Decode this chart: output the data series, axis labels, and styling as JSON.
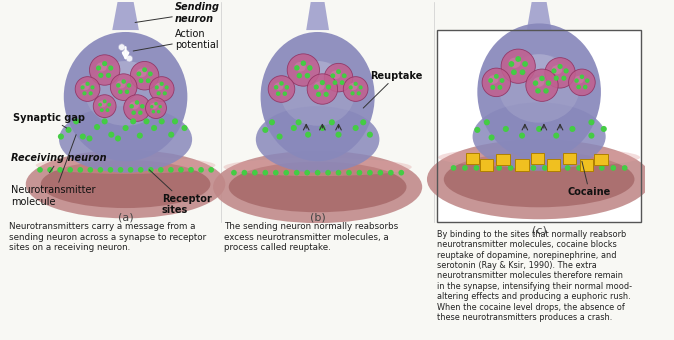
{
  "background_color": "#f8f8f4",
  "panels": [
    "(a)",
    "(b)",
    "(c)"
  ],
  "panel_a": {
    "labels": {
      "sending_neuron": "Sending\nneuron",
      "action_potential": "Action\npotential",
      "synaptic_gap": "Synaptic gap",
      "receiving_neuron": "Receiving neuron",
      "neurotransmitter": "Neurotransmitter\nmolecule",
      "receptor_sites": "Receptor\nsites"
    },
    "caption": "Neurotransmitters carry a message from a\nsending neuron across a synapse to receptor\nsites on a receiving neuron."
  },
  "panel_b": {
    "labels": {
      "reuptake": "Reuptake"
    },
    "caption": "The sending neuron normally reabsorbs\nexcess neurotransmitter molecules, a\nprocess called reuptake."
  },
  "panel_c": {
    "labels": {
      "cocaine": "Cocaine"
    },
    "caption": "By binding to the sites that normally reabsorb\nneurotransmitter molecules, cocaine blocks\nreuptake of dopamine, norepinephrine, and\nserotonin (Ray & Ksir, 1990). The extra\nneurotransmitter molecules therefore remain\nin the synapse, intensifying their normal mood-\naltering effects and producing a euphoric rush.\nWhen the cocaine level drops, the absence of\nthese neurotransmitters produces a crash."
  },
  "neuron_stem_color": "#a0a0cc",
  "neuron_body_color": "#8888bb",
  "neuron_inner_color": "#aaaacc",
  "neuron_light_color": "#c0c0dd",
  "recv_outer_color": "#c08888",
  "recv_inner_color": "#a06060",
  "vesicle_fill": "#c06090",
  "vesicle_edge": "#903060",
  "dot_color": "#44cc44",
  "cocaine_fill": "#f0c020",
  "cocaine_edge": "#b08000",
  "label_color": "#111111",
  "caption_color": "#222222",
  "panel_label_color": "#444444",
  "box_color": "#555555"
}
